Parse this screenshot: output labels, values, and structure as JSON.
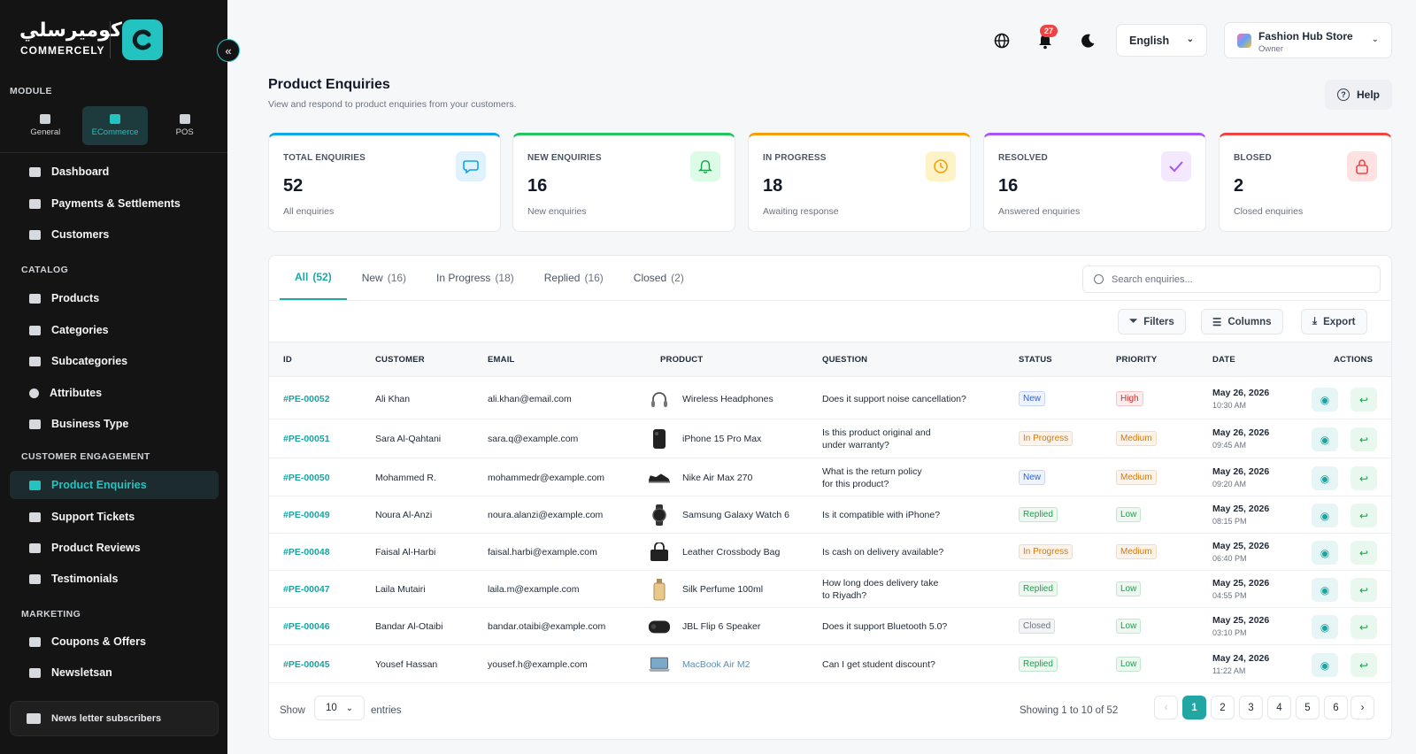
{
  "brand": {
    "arabic": "كوميرسلي",
    "name": "COMMERCELY"
  },
  "sidebar": {
    "module_heading": "MODULE",
    "modules": [
      {
        "label": "General"
      },
      {
        "label": "ECommerce"
      },
      {
        "label": "POS"
      }
    ],
    "main_items": [
      {
        "label": "Dashboard"
      },
      {
        "label": "Payments & Settlements"
      },
      {
        "label": "Customers"
      }
    ],
    "catalog_heading": "CATALOG",
    "catalog_items": [
      {
        "label": "Products"
      },
      {
        "label": "Categories"
      },
      {
        "label": "Subcategories"
      },
      {
        "label": "Attributes"
      },
      {
        "label": "Business Type"
      }
    ],
    "engagement_heading": "CUSTOMER ENGAGEMENT",
    "engagement_items": [
      {
        "label": "Product Enquiries"
      },
      {
        "label": "Support Tickets"
      },
      {
        "label": "Product Reviews"
      },
      {
        "label": "Testimonials"
      }
    ],
    "marketing_heading": "MARKETING",
    "marketing_items": [
      {
        "label": "Coupons & Offers"
      },
      {
        "label": "Newsletsan"
      }
    ],
    "subscribers_label": "News letter subscribers"
  },
  "topbar": {
    "notification_count": "27",
    "language": "English",
    "store_name": "Fashion Hub Store",
    "store_role": "Owner"
  },
  "page": {
    "title": "Product Enquiries",
    "subtitle": "View and respond to product enquiries from your customers.",
    "help_label": "Help"
  },
  "stats": [
    {
      "label": "TOTAL ENQUIRIES",
      "value": "52",
      "desc": "All enquiries",
      "color": "#0ea5e9"
    },
    {
      "label": "NEW ENQUIRIES",
      "value": "16",
      "desc": "New enquiries",
      "color": "#22c55e"
    },
    {
      "label": "IN PROGRESS",
      "value": "18",
      "desc": "Awaiting response",
      "color": "#f59e0b"
    },
    {
      "label": "RESOLVED",
      "value": "16",
      "desc": "Answered enquiries",
      "color": "#a855f7"
    },
    {
      "label": "BLOSED",
      "value": "2",
      "desc": "Closed enquiries",
      "color": "#ef4444"
    }
  ],
  "tabs": [
    {
      "label": "All",
      "count": "(52)"
    },
    {
      "label": "New",
      "count": "(16)"
    },
    {
      "label": "In Progress",
      "count": "(18)"
    },
    {
      "label": "Replied",
      "count": "(16)"
    },
    {
      "label": "Closed",
      "count": "(2)"
    }
  ],
  "search": {
    "placeholder": "Search enquiries..."
  },
  "toolbar": {
    "filters": "Filters",
    "columns": "Columns",
    "export": "Export"
  },
  "table": {
    "headers": {
      "id": "ID",
      "customer": "CUSTOMER",
      "email": "EMAIL",
      "product": "PRODUCT",
      "question": "QUESTION",
      "status": "STATUS",
      "priority": "PRIORITY",
      "date": "DATE",
      "actions": "ACTIONS"
    },
    "rows": [
      {
        "id": "#PE-00052",
        "customer": "Ali Khan",
        "email": "ali.khan@email.com",
        "product": "Wireless Headphones",
        "product_icon": "headphones-icon",
        "q1": "Does it support noise cancellation?",
        "q2": "",
        "status": "New",
        "priority": "High",
        "date": "May 26, 2026",
        "time": "10:30 AM"
      },
      {
        "id": "#PE-00051",
        "customer": "Sara Al-Qahtani",
        "email": "sara.q@example.com",
        "product": "iPhone 15 Pro Max",
        "product_icon": "phone-icon",
        "q1": "Is this product original and",
        "q2": "under warranty?",
        "status": "In Progress",
        "priority": "Medium",
        "date": "May 26, 2026",
        "time": "09:45 AM"
      },
      {
        "id": "#PE-00050",
        "customer": "Mohammed R.",
        "email": "mohammedr@example.com",
        "product": "Nike Air Max 270",
        "product_icon": "shoe-icon",
        "q1": "What is the return policy",
        "q2": "for this product?",
        "status": "New",
        "priority": "Medium",
        "date": "May 26, 2026",
        "time": "09:20 AM"
      },
      {
        "id": "#PE-00049",
        "customer": "Noura Al-Anzi",
        "email": "noura.alanzi@example.com",
        "product": "Samsung Galaxy Watch 6",
        "product_icon": "watch-icon",
        "q1": "Is it compatible with iPhone?",
        "q2": "",
        "status": "Replied",
        "priority": "Low",
        "date": "May 25, 2026",
        "time": "08:15 PM"
      },
      {
        "id": "#PE-00048",
        "customer": "Faisal Al-Harbi",
        "email": "faisal.harbi@example.com",
        "product": "Leather Crossbody Bag",
        "product_icon": "bag-icon",
        "q1": "Is cash on delivery available?",
        "q2": "",
        "status": "In Progress",
        "priority": "Medium",
        "date": "May 25, 2026",
        "time": "06:40 PM"
      },
      {
        "id": "#PE-00047",
        "customer": "Laila Mutairi",
        "email": "laila.m@example.com",
        "product": "Silk Perfume 100ml",
        "product_icon": "perfume-icon",
        "q1": "How long does delivery take",
        "q2": "to Riyadh?",
        "status": "Replied",
        "priority": "Low",
        "date": "May 25, 2026",
        "time": "04:55 PM"
      },
      {
        "id": "#PE-00046",
        "customer": "Bandar Al-Otaibi",
        "email": "bandar.otaibi@example.com",
        "product": "JBL Flip 6 Speaker",
        "product_icon": "speaker-icon",
        "q1": "Does it support Bluetooth 5.0?",
        "q2": "",
        "status": "Closed",
        "priority": "Low",
        "date": "May 25, 2026",
        "time": "03:10 PM"
      },
      {
        "id": "#PE-00045",
        "customer": "Yousef Hassan",
        "email": "yousef.h@example.com",
        "product": "MacBook Air M2",
        "product_icon": "laptop-icon",
        "q1": "Can I get student discount?",
        "q2": "",
        "status": "Replied",
        "priority": "Low",
        "date": "May 24, 2026",
        "time": "11:22 AM"
      }
    ]
  },
  "status_colors": {
    "New": "#2563eb",
    "In Progress": "#d97706",
    "Replied": "#16a34a",
    "Closed": "#6b7280"
  },
  "priority_colors": {
    "High": "#dc2626",
    "Medium": "#d97706",
    "Low": "#16a34a"
  },
  "footer": {
    "show": "Show",
    "page_size": "10",
    "entries": "entries",
    "info": "Showing 1 to 10 of 52",
    "pages": [
      "1",
      "2",
      "3",
      "4",
      "5",
      "6"
    ],
    "current_page": "1"
  }
}
